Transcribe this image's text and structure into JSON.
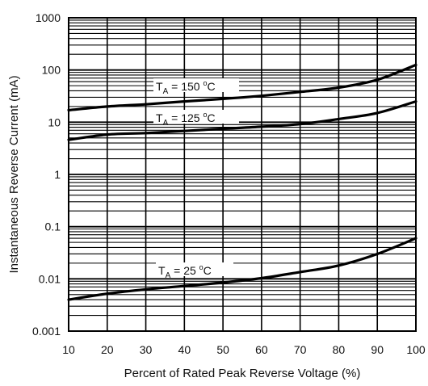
{
  "chart_data": {
    "type": "line",
    "xlabel": "Percent of Rated Peak Reverse Voltage (%)",
    "ylabel": "Instantaneous Reverse Current (mA)",
    "x_scale": "linear",
    "y_scale": "log",
    "xlim": [
      10,
      100
    ],
    "ylim": [
      0.001,
      1000
    ],
    "grid": true,
    "x_ticks": [
      10,
      20,
      30,
      40,
      50,
      60,
      70,
      80,
      90,
      100
    ],
    "x_tick_labels": [
      "10",
      "20",
      "30",
      "40",
      "50",
      "60",
      "70",
      "80",
      "90",
      "100"
    ],
    "y_ticks": [
      0.001,
      0.01,
      0.1,
      1,
      10,
      100,
      1000
    ],
    "y_tick_labels": [
      "0.001",
      "0.01",
      "0.1",
      "1",
      "10",
      "100",
      "1000"
    ],
    "series": [
      {
        "name": "TA = 150 °C",
        "label": {
          "t": "T",
          "sub": "A",
          "rest1": " = 150 ",
          "sup": "o",
          "rest2": "C"
        },
        "x": [
          10,
          20,
          30,
          40,
          50,
          60,
          70,
          80,
          90,
          100
        ],
        "y": [
          17,
          20,
          22,
          25,
          28,
          32,
          38,
          46,
          65,
          125
        ]
      },
      {
        "name": "TA = 125 °C",
        "label": {
          "t": "T",
          "sub": "A",
          "rest1": " = 125 ",
          "sup": "o",
          "rest2": "C"
        },
        "x": [
          10,
          20,
          30,
          40,
          50,
          60,
          70,
          80,
          90,
          100
        ],
        "y": [
          4.6,
          5.8,
          6.2,
          6.8,
          7.5,
          8.2,
          9.2,
          11.5,
          15,
          25
        ]
      },
      {
        "name": "TA = 25 °C",
        "label": {
          "t": "T",
          "sub": "A",
          "rest1": " = 25 ",
          "sup": "o",
          "rest2": "C"
        },
        "x": [
          10,
          20,
          30,
          40,
          50,
          60,
          70,
          80,
          90,
          100
        ],
        "y": [
          0.004,
          0.0052,
          0.0063,
          0.0073,
          0.0085,
          0.0103,
          0.0135,
          0.018,
          0.03,
          0.06
        ]
      }
    ]
  }
}
